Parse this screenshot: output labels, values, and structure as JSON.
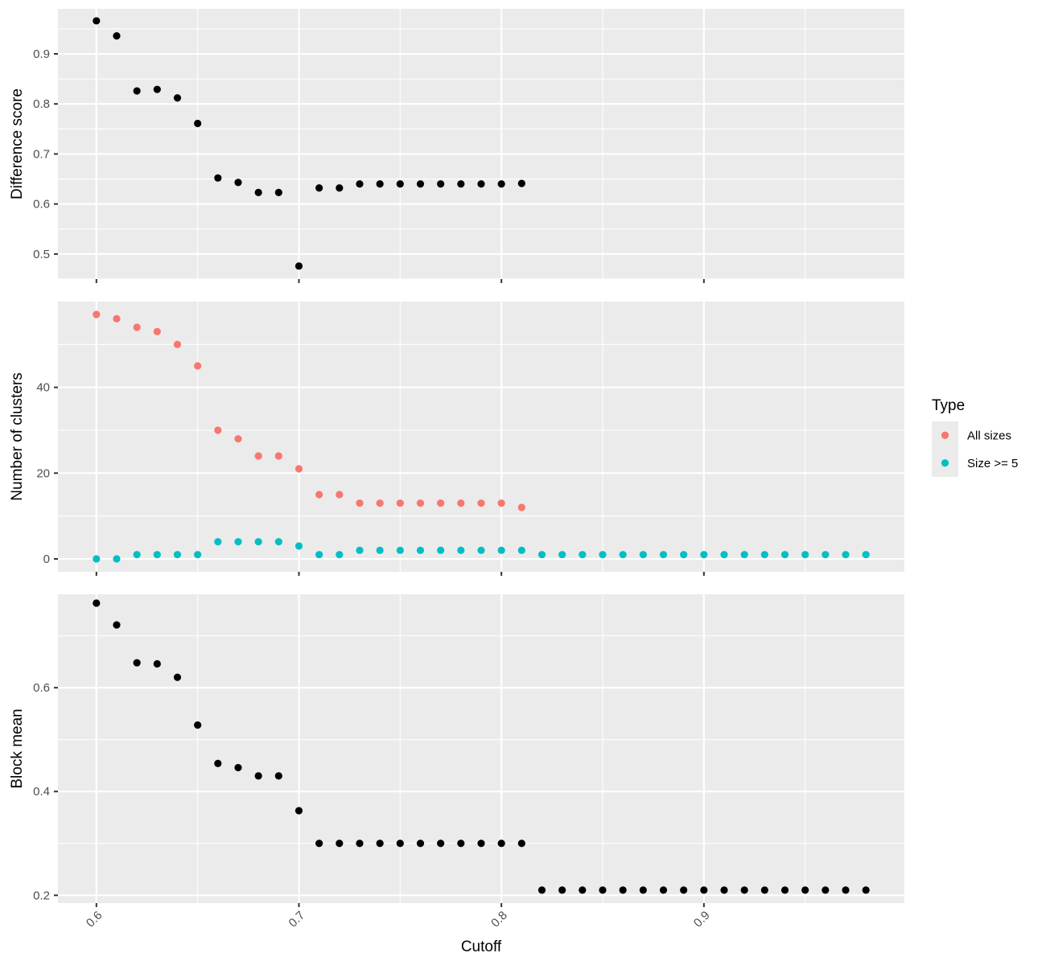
{
  "chart_data": {
    "type": "scatter",
    "xlabel": "Cutoff",
    "xlim": [
      0.581,
      0.999
    ],
    "x_ticks": [
      0.6,
      0.7,
      0.8,
      0.9
    ],
    "x_tick_labels": [
      "0.6",
      "0.7",
      "0.8",
      "0.9"
    ],
    "legend": {
      "title": "Type",
      "placement": "right",
      "entries": [
        {
          "label": "All sizes",
          "color": "#F8766D"
        },
        {
          "label": "Size >= 5",
          "color": "#00BFC4"
        }
      ]
    },
    "panels": [
      {
        "id": "difference",
        "ylabel": "Difference score",
        "ylim": [
          0.45,
          0.99
        ],
        "y_ticks": [
          0.5,
          0.6,
          0.7,
          0.8,
          0.9
        ],
        "y_tick_labels": [
          "0.5",
          "0.6",
          "0.7",
          "0.8",
          "0.9"
        ],
        "series": [
          {
            "color": "#000000",
            "x": [
              0.6,
              0.61,
              0.62,
              0.63,
              0.64,
              0.65,
              0.66,
              0.67,
              0.68,
              0.69,
              0.7,
              0.71,
              0.72,
              0.73,
              0.74,
              0.75,
              0.76,
              0.77,
              0.78,
              0.79,
              0.8,
              0.81
            ],
            "y": [
              0.966,
              0.936,
              0.826,
              0.829,
              0.812,
              0.761,
              0.652,
              0.643,
              0.623,
              0.623,
              0.476,
              0.632,
              0.632,
              0.64,
              0.64,
              0.64,
              0.64,
              0.64,
              0.64,
              0.64,
              0.64,
              0.641
            ]
          }
        ]
      },
      {
        "id": "clusters",
        "ylabel": "Number of clusters",
        "ylim": [
          -3,
          60
        ],
        "y_ticks": [
          0,
          20,
          40
        ],
        "y_tick_labels": [
          "0",
          "20",
          "40"
        ],
        "series": [
          {
            "name": "All sizes",
            "color": "#F8766D",
            "x": [
              0.6,
              0.61,
              0.62,
              0.63,
              0.64,
              0.65,
              0.66,
              0.67,
              0.68,
              0.69,
              0.7,
              0.71,
              0.72,
              0.73,
              0.74,
              0.75,
              0.76,
              0.77,
              0.78,
              0.79,
              0.8,
              0.81
            ],
            "y": [
              57,
              56,
              54,
              53,
              50,
              45,
              30,
              28,
              24,
              24,
              21,
              15,
              15,
              13,
              13,
              13,
              13,
              13,
              13,
              13,
              13,
              12
            ]
          },
          {
            "name": "Size >= 5",
            "color": "#00BFC4",
            "x": [
              0.6,
              0.61,
              0.62,
              0.63,
              0.64,
              0.65,
              0.66,
              0.67,
              0.68,
              0.69,
              0.7,
              0.71,
              0.72,
              0.73,
              0.74,
              0.75,
              0.76,
              0.77,
              0.78,
              0.79,
              0.8,
              0.81,
              0.82,
              0.83,
              0.84,
              0.85,
              0.86,
              0.87,
              0.88,
              0.89,
              0.9,
              0.91,
              0.92,
              0.93,
              0.94,
              0.95,
              0.96,
              0.97,
              0.98
            ],
            "y": [
              0,
              0,
              1,
              1,
              1,
              1,
              4,
              4,
              4,
              4,
              3,
              1,
              1,
              2,
              2,
              2,
              2,
              2,
              2,
              2,
              2,
              2,
              1,
              1,
              1,
              1,
              1,
              1,
              1,
              1,
              1,
              1,
              1,
              1,
              1,
              1,
              1,
              1,
              1
            ]
          }
        ]
      },
      {
        "id": "block",
        "ylabel": "Block mean",
        "ylim": [
          0.185,
          0.78
        ],
        "y_ticks": [
          0.2,
          0.4,
          0.6
        ],
        "y_tick_labels": [
          "0.2",
          "0.4",
          "0.6"
        ],
        "series": [
          {
            "color": "#000000",
            "x": [
              0.6,
              0.61,
              0.62,
              0.63,
              0.64,
              0.65,
              0.66,
              0.67,
              0.68,
              0.69,
              0.7,
              0.71,
              0.72,
              0.73,
              0.74,
              0.75,
              0.76,
              0.77,
              0.78,
              0.79,
              0.8,
              0.81,
              0.82,
              0.83,
              0.84,
              0.85,
              0.86,
              0.87,
              0.88,
              0.89,
              0.9,
              0.91,
              0.92,
              0.93,
              0.94,
              0.95,
              0.96,
              0.97,
              0.98
            ],
            "y": [
              0.763,
              0.721,
              0.648,
              0.646,
              0.62,
              0.528,
              0.454,
              0.446,
              0.43,
              0.43,
              0.363,
              0.3,
              0.3,
              0.3,
              0.3,
              0.3,
              0.3,
              0.3,
              0.3,
              0.3,
              0.3,
              0.3,
              0.21,
              0.21,
              0.21,
              0.21,
              0.21,
              0.21,
              0.21,
              0.21,
              0.21,
              0.21,
              0.21,
              0.21,
              0.21,
              0.21,
              0.21,
              0.21,
              0.21
            ]
          }
        ]
      }
    ]
  }
}
